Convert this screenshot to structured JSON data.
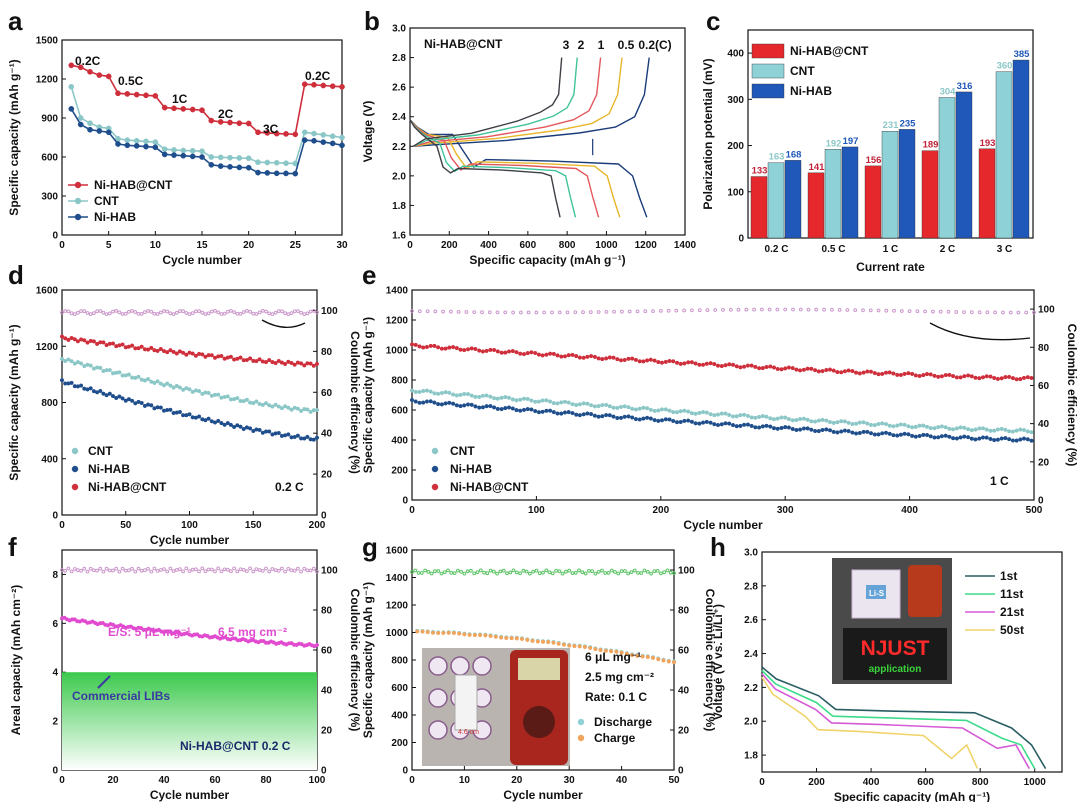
{
  "colors": {
    "nicnt": "#cf2e3b",
    "cnt": "#8cc7c8",
    "nihab": "#1f4e8c",
    "barRed": "#e5282c",
    "barCyan": "#8ed1d6",
    "barBlue": "#1f58b8",
    "magenta": "#e14bd0",
    "green": "#5dc466",
    "orange": "#f2a45c",
    "ce": "#cc99cc"
  },
  "chart_data": [
    {
      "id": "a",
      "type": "line",
      "panel": "a",
      "xlabel": "Cycle number",
      "ylabel": "Specific capacity (mAh g⁻¹)",
      "xlim": [
        0,
        30
      ],
      "ylim": [
        0,
        1500
      ],
      "xticks": [
        0,
        5,
        10,
        15,
        20,
        25,
        30
      ],
      "yticks": [
        0,
        300,
        600,
        900,
        1200,
        1500
      ],
      "annotations": [
        "0.2C",
        "0.5C",
        "1C",
        "2C",
        "3C",
        "0.2C"
      ],
      "series": [
        {
          "name": "Ni-HAB@CNT",
          "values": [
            1305,
            1290,
            1255,
            1230,
            1220,
            1090,
            1085,
            1080,
            1075,
            1070,
            980,
            975,
            970,
            965,
            960,
            880,
            870,
            865,
            860,
            858,
            790,
            785,
            780,
            778,
            775,
            1160,
            1155,
            1150,
            1145,
            1140
          ]
        },
        {
          "name": "CNT",
          "values": [
            1140,
            900,
            860,
            830,
            820,
            740,
            730,
            725,
            720,
            715,
            660,
            655,
            650,
            648,
            645,
            600,
            598,
            595,
            592,
            590,
            560,
            558,
            555,
            552,
            550,
            790,
            780,
            770,
            760,
            750
          ]
        },
        {
          "name": "Ni-HAB",
          "values": [
            970,
            850,
            810,
            800,
            790,
            700,
            690,
            685,
            680,
            675,
            620,
            615,
            610,
            605,
            600,
            540,
            530,
            525,
            520,
            518,
            480,
            478,
            475,
            474,
            472,
            730,
            725,
            715,
            705,
            690
          ]
        }
      ]
    },
    {
      "id": "b",
      "type": "line",
      "panel": "b",
      "title": "Ni-HAB@CNT",
      "xlabel": "Specific capacity (mAh g⁻¹)",
      "ylabel": "Voltage (V)",
      "xlim": [
        0,
        1400
      ],
      "ylim": [
        1.6,
        3.0
      ],
      "xticks": [
        0,
        200,
        400,
        600,
        800,
        1000,
        1200,
        1400
      ],
      "yticks": [
        1.6,
        1.8,
        2.0,
        2.2,
        2.4,
        2.6,
        2.8,
        3.0
      ],
      "rate_labels": [
        "3",
        "2",
        "1",
        "0.5",
        "0.2(C)"
      ],
      "series": [
        {
          "name": "0.2C",
          "capacity": 1230
        },
        {
          "name": "0.5C",
          "capacity": 1090
        },
        {
          "name": "1C",
          "capacity": 980
        },
        {
          "name": "2C",
          "capacity": 860
        },
        {
          "name": "3C",
          "capacity": 780
        }
      ]
    },
    {
      "id": "c",
      "type": "bar",
      "panel": "c",
      "xlabel": "Current rate",
      "ylabel": "Polarization potential (mV)",
      "ylim": [
        0,
        450
      ],
      "yticks": [
        0,
        100,
        200,
        300,
        400
      ],
      "categories": [
        "0.2 C",
        "0.5 C",
        "1 C",
        "2 C",
        "3 C"
      ],
      "series": [
        {
          "name": "Ni-HAB@CNT",
          "values": [
            133,
            141,
            156,
            189,
            193
          ]
        },
        {
          "name": "CNT",
          "values": [
            163,
            192,
            231,
            304,
            360
          ]
        },
        {
          "name": "Ni-HAB",
          "values": [
            168,
            197,
            235,
            316,
            385
          ]
        }
      ]
    },
    {
      "id": "d",
      "type": "line",
      "panel": "d",
      "xlabel": "Cycle number",
      "ylabel": "Specific capacity (mAh g⁻¹)",
      "y2label": "Coulombic efficiency (%)",
      "xlim": [
        0,
        200
      ],
      "ylim": [
        0,
        1600
      ],
      "y2lim": [
        0,
        110
      ],
      "xticks": [
        0,
        50,
        100,
        150,
        200
      ],
      "yticks": [
        0,
        400,
        800,
        1200,
        1600
      ],
      "y2ticks": [
        0,
        20,
        40,
        60,
        80,
        100
      ],
      "rate_label": "0.2 C",
      "series": [
        {
          "name": "CNT",
          "start": 1110,
          "end": 740
        },
        {
          "name": "Ni-HAB",
          "start": 950,
          "end": 540
        },
        {
          "name": "Ni-HAB@CNT",
          "start": 1260,
          "end": 1070
        }
      ]
    },
    {
      "id": "e",
      "type": "line",
      "panel": "e",
      "xlabel": "Cycle number",
      "ylabel": "Specific capacity (mAh g⁻¹)",
      "y2label": "Coulombic efficiency (%)",
      "xlim": [
        0,
        500
      ],
      "ylim": [
        0,
        1400
      ],
      "y2lim": [
        0,
        110
      ],
      "xticks": [
        0,
        100,
        200,
        300,
        400,
        500
      ],
      "yticks": [
        0,
        200,
        400,
        600,
        800,
        1000,
        1200,
        1400
      ],
      "y2ticks": [
        0,
        20,
        40,
        60,
        80,
        100
      ],
      "rate_label": "1 C",
      "series": [
        {
          "name": "CNT",
          "start": 730,
          "end": 460
        },
        {
          "name": "Ni-HAB",
          "start": 660,
          "end": 400
        },
        {
          "name": "Ni-HAB@CNT",
          "start": 1030,
          "end": 810
        }
      ]
    },
    {
      "id": "f",
      "type": "line",
      "panel": "f",
      "xlabel": "Cycle number",
      "ylabel": "Areal capacity (mAh cm⁻²)",
      "y2label": "Coulombic efficiency (%)",
      "xlim": [
        0,
        100
      ],
      "ylim": [
        0,
        9
      ],
      "y2lim": [
        0,
        110
      ],
      "xticks": [
        0,
        20,
        40,
        60,
        80,
        100
      ],
      "yticks": [
        0,
        2,
        4,
        6,
        8
      ],
      "y2ticks": [
        0,
        20,
        40,
        60,
        80,
        100
      ],
      "notes": [
        "E/S: 5 μL mg⁻¹",
        "6.5 mg cm⁻²",
        "Commercial LIBs",
        "Ni-HAB@CNT 0.2 C"
      ],
      "series": [
        {
          "name": "Ni-HAB@CNT",
          "start": 6.2,
          "end": 5.1
        }
      ],
      "reference_level": 4
    },
    {
      "id": "g",
      "type": "line",
      "panel": "g",
      "xlabel": "Cycle number",
      "ylabel": "Specific capacity (mAh g⁻¹)",
      "y2label": "Coulombic efficiency (%)",
      "xlim": [
        0,
        50
      ],
      "ylim": [
        0,
        1600
      ],
      "y2lim": [
        0,
        110
      ],
      "xticks": [
        0,
        10,
        20,
        30,
        40,
        50
      ],
      "yticks": [
        0,
        200,
        400,
        600,
        800,
        1000,
        1200,
        1400,
        1600
      ],
      "y2ticks": [
        0,
        20,
        40,
        60,
        80,
        100
      ],
      "notes": [
        "6 μL mg⁻¹",
        "2.5 mg cm⁻²",
        "Rate:  0.1 C",
        "4.6 cm"
      ],
      "series": [
        {
          "name": "Discharge",
          "start": 1010,
          "end": 790
        },
        {
          "name": "Charge",
          "start": 1005,
          "end": 785
        }
      ]
    },
    {
      "id": "h",
      "type": "line",
      "panel": "h",
      "xlabel": "Specific capacity (mAh g⁻¹)",
      "ylabel": "Voltage (V vs. Li/Li⁺)",
      "xlim": [
        0,
        1100
      ],
      "ylim": [
        1.7,
        3.0
      ],
      "xticks": [
        0,
        200,
        400,
        600,
        800,
        1000
      ],
      "yticks": [
        1.8,
        2.0,
        2.2,
        2.4,
        2.6,
        2.8,
        3.0
      ],
      "photo_text": [
        "NJUST",
        "application",
        "Li-S"
      ],
      "series": [
        {
          "name": "1st",
          "capacity": 1040
        },
        {
          "name": "11st",
          "capacity": 1000
        },
        {
          "name": "21st",
          "capacity": 980
        },
        {
          "name": "50st",
          "capacity": 790
        }
      ]
    }
  ]
}
